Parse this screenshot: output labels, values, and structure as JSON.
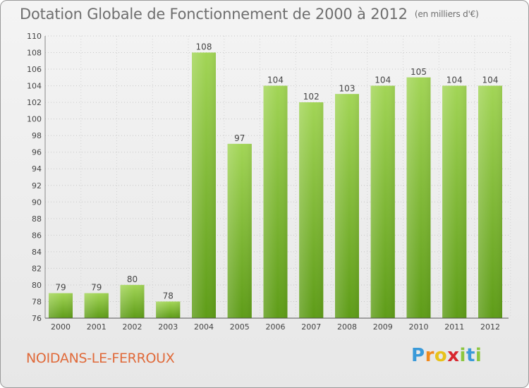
{
  "chart_data": {
    "type": "bar",
    "title": "Dotation Globale de Fonctionnement de 2000 à 2012",
    "subtitle": "(en milliers d'€)",
    "categories": [
      "2000",
      "2001",
      "2002",
      "2003",
      "2004",
      "2005",
      "2006",
      "2007",
      "2008",
      "2009",
      "2010",
      "2011",
      "2012"
    ],
    "values": [
      79,
      79,
      80,
      78,
      108,
      97,
      104,
      102,
      103,
      104,
      105,
      104,
      104
    ],
    "ylim": [
      76,
      110
    ],
    "yticks": [
      76,
      78,
      80,
      82,
      84,
      86,
      88,
      90,
      92,
      94,
      96,
      98,
      100,
      102,
      104,
      106,
      108,
      110
    ],
    "grid": true,
    "bar_color": "#8cc63f"
  },
  "footer": {
    "town": "NOIDANS-LE-FERROUX",
    "logo": "Proxiti",
    "logo_letters": [
      "P",
      "r",
      "o",
      "x",
      "i",
      "t",
      "i"
    ],
    "logo_colors": [
      "#3a9ad9",
      "#f08a1e",
      "#e8c21a",
      "#d8262e",
      "#8cc63f",
      "#3a9ad9",
      "#8cc63f"
    ]
  }
}
